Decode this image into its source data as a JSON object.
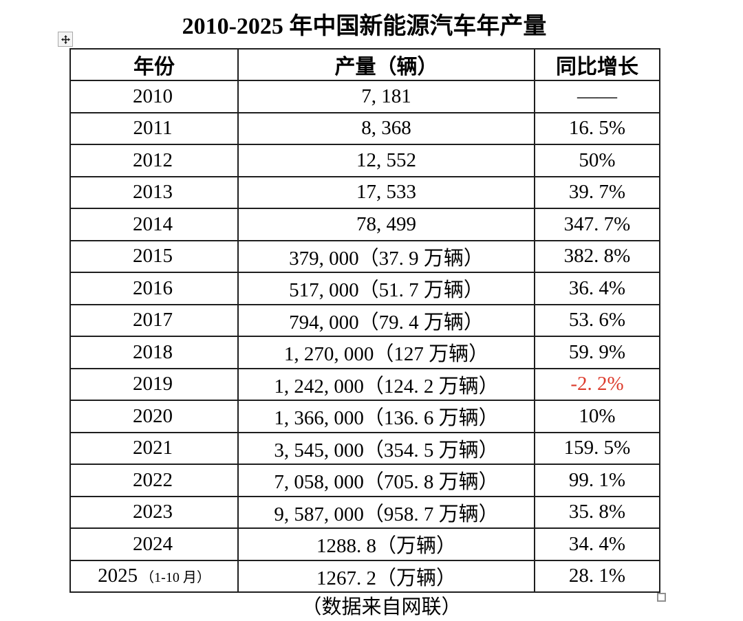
{
  "title": "2010-2025 年中国新能源汽车年产量",
  "source_note": "（数据来自网联）",
  "colors": {
    "text": "#000000",
    "negative_growth": "#dc3b2c",
    "table_border": "#1e1e1e"
  },
  "icons": {
    "move_handle": "four-way-move-arrows-icon",
    "resize_handle": "open-square-resize-icon"
  },
  "table": {
    "headers": [
      "年份",
      "产量（辆）",
      "同比增长"
    ],
    "rows": [
      {
        "year": "2010",
        "year_note": "",
        "production": "7, 181",
        "growth": "——",
        "negative": false
      },
      {
        "year": "2011",
        "year_note": "",
        "production": "8, 368",
        "growth": "16. 5%",
        "negative": false
      },
      {
        "year": "2012",
        "year_note": "",
        "production": "12, 552",
        "growth": "50%",
        "negative": false
      },
      {
        "year": "2013",
        "year_note": "",
        "production": "17, 533",
        "growth": "39. 7%",
        "negative": false
      },
      {
        "year": "2014",
        "year_note": "",
        "production": "78, 499",
        "growth": "347. 7%",
        "negative": false
      },
      {
        "year": "2015",
        "year_note": "",
        "production": "379, 000（37. 9 万辆）",
        "growth": "382. 8%",
        "negative": false
      },
      {
        "year": "2016",
        "year_note": "",
        "production": "517, 000（51. 7 万辆）",
        "growth": "36. 4%",
        "negative": false
      },
      {
        "year": "2017",
        "year_note": "",
        "production": "794, 000（79. 4 万辆）",
        "growth": "53. 6%",
        "negative": false
      },
      {
        "year": "2018",
        "year_note": "",
        "production": "1, 270, 000（127 万辆）",
        "growth": "59. 9%",
        "negative": false
      },
      {
        "year": "2019",
        "year_note": "",
        "production": "1, 242, 000（124. 2 万辆）",
        "growth": "-2. 2%",
        "negative": true
      },
      {
        "year": "2020",
        "year_note": "",
        "production": "1, 366, 000（136. 6 万辆）",
        "growth": "10%",
        "negative": false
      },
      {
        "year": "2021",
        "year_note": "",
        "production": "3, 545, 000（354. 5 万辆）",
        "growth": "159. 5%",
        "negative": false
      },
      {
        "year": "2022",
        "year_note": "",
        "production": "7, 058, 000（705. 8 万辆）",
        "growth": "99. 1%",
        "negative": false
      },
      {
        "year": "2023",
        "year_note": "",
        "production": "9, 587, 000（958. 7 万辆）",
        "growth": "35. 8%",
        "negative": false
      },
      {
        "year": "2024",
        "year_note": "",
        "production": "1288. 8（万辆）",
        "growth": "34. 4%",
        "negative": false
      },
      {
        "year": "2025",
        "year_note": "（1-10 月）",
        "production": "1267. 2（万辆）",
        "growth": "28. 1%",
        "negative": false
      }
    ]
  }
}
